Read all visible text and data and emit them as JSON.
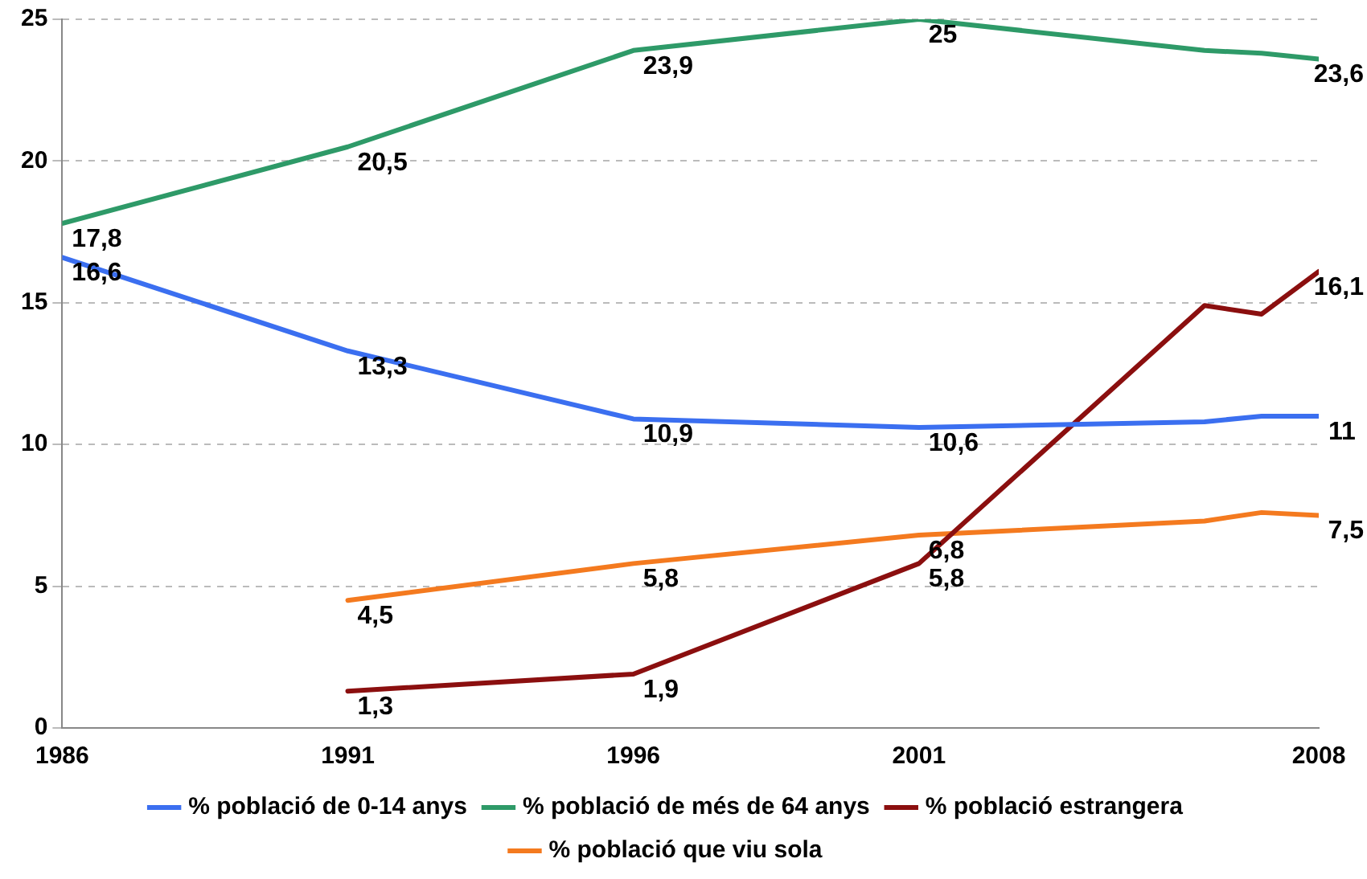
{
  "chart_data": {
    "type": "line",
    "xlim": [
      1986,
      2008
    ],
    "xticks": [
      1986,
      1991,
      1996,
      2001,
      2008
    ],
    "ylim": [
      0,
      25
    ],
    "yticks": [
      0,
      5,
      10,
      15,
      20,
      25
    ],
    "grid": "y",
    "legend": "bottom",
    "marker": "none",
    "line_style": "solid",
    "series": [
      {
        "name": "% població de 0-14 anys",
        "color": "#3b6ff0",
        "x": [
          1986,
          1991,
          1996,
          2001,
          2006,
          2007,
          2008
        ],
        "values": [
          16.6,
          13.3,
          10.9,
          10.6,
          10.8,
          11,
          11
        ],
        "value_labels": [
          "16,6",
          "13,3",
          "10,9",
          "10,6",
          null,
          null,
          "11"
        ]
      },
      {
        "name": "% població de més de 64 anys",
        "color": "#2e9a68",
        "x": [
          1986,
          1991,
          1996,
          2001,
          2006,
          2007,
          2008
        ],
        "values": [
          17.8,
          20.5,
          23.9,
          25,
          23.9,
          23.8,
          23.6
        ],
        "value_labels": [
          "17,8",
          "20,5",
          "23,9",
          "25",
          null,
          null,
          "23,6"
        ]
      },
      {
        "name": "% població estrangera",
        "color": "#8b0f0f",
        "x": [
          1991,
          1996,
          2001,
          2006,
          2007,
          2008
        ],
        "values": [
          1.3,
          1.9,
          5.8,
          14.9,
          14.6,
          16.1
        ],
        "value_labels": [
          "1,3",
          "1,9",
          "5,8",
          null,
          null,
          "16,1"
        ]
      },
      {
        "name": "% població que viu sola",
        "color": "#f47a1f",
        "x": [
          1991,
          1996,
          2001,
          2006,
          2007,
          2008
        ],
        "values": [
          4.5,
          5.8,
          6.8,
          7.3,
          7.6,
          7.5
        ],
        "value_labels": [
          "4,5",
          "5,8",
          "6,8",
          null,
          null,
          "7,5"
        ]
      }
    ]
  }
}
